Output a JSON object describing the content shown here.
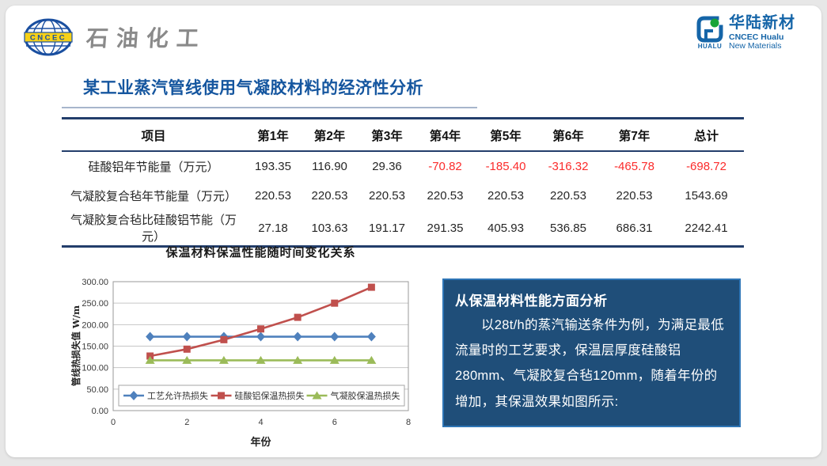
{
  "header": {
    "left_logo": {
      "emblem_text": "CNCEC",
      "brand_text": "石油化工"
    },
    "right_logo": {
      "icon_caption": "HUALU",
      "brand_cn": "华陆新材",
      "brand_en_line1": "CNCEC Hualu",
      "brand_en_line2": "New Materials"
    }
  },
  "title": "某工业蒸汽管线使用气凝胶材料的经济性分析",
  "table": {
    "columns": [
      "项目",
      "第1年",
      "第2年",
      "第3年",
      "第4年",
      "第5年",
      "第6年",
      "第7年",
      "总计"
    ],
    "rows": [
      {
        "label": "硅酸铝年节能量（万元）",
        "values": [
          "193.35",
          "116.90",
          "29.36",
          "-70.82",
          "-185.40",
          "-316.32",
          "-465.78",
          "-698.72"
        ]
      },
      {
        "label": "气凝胶复合毡年节能量（万元）",
        "values": [
          "220.53",
          "220.53",
          "220.53",
          "220.53",
          "220.53",
          "220.53",
          "220.53",
          "1543.69"
        ]
      },
      {
        "label": "气凝胶复合毡比硅酸铝节能（万元）",
        "values": [
          "27.18",
          "103.63",
          "191.17",
          "291.35",
          "405.93",
          "536.85",
          "686.31",
          "2242.41"
        ]
      }
    ]
  },
  "chart_data": {
    "type": "line",
    "title": "保温材料保温性能随时间变化关系",
    "xlabel": "年份",
    "ylabel": "管线热损失值 W/m",
    "x": [
      1,
      2,
      3,
      4,
      5,
      6,
      7
    ],
    "xlim": [
      0,
      8
    ],
    "xticks": [
      0,
      2,
      4,
      6,
      8
    ],
    "ylim": [
      0,
      300
    ],
    "yticks": [
      0,
      50,
      100,
      150,
      200,
      250,
      300
    ],
    "ytick_decimals": 2,
    "grid": true,
    "legend_position": "bottom-inside",
    "series": [
      {
        "name": "工艺允许热损失",
        "color": "#4f81bd",
        "marker": "diamond",
        "values": [
          172,
          172,
          172,
          172,
          172,
          172,
          172
        ]
      },
      {
        "name": "硅酸铝保温热损失",
        "color": "#c0504d",
        "marker": "square",
        "values": [
          127,
          143,
          165,
          190,
          217,
          250,
          287
        ]
      },
      {
        "name": "气凝胶保温热损失",
        "color": "#9bbb59",
        "marker": "triangle",
        "values": [
          117,
          117,
          117,
          117,
          117,
          117,
          117
        ]
      }
    ]
  },
  "analysis_box": {
    "heading": "从保温材料性能方面分析",
    "body": "以28t/h的蒸汽输送条件为例，为满足最低流量时的工艺要求，保温层厚度硅酸铝280mm、气凝胶复合毡120mm，随着年份的增加，其保温效果如图所示:"
  },
  "colors": {
    "title": "#15569f",
    "negative_value": "#fb2b2b",
    "table_border": "#233e6b",
    "analysis_bg": "#1f4e79",
    "analysis_border": "#2e75b6",
    "brand_blue": "#1565a8",
    "brand_gray": "#8a8a8a"
  }
}
